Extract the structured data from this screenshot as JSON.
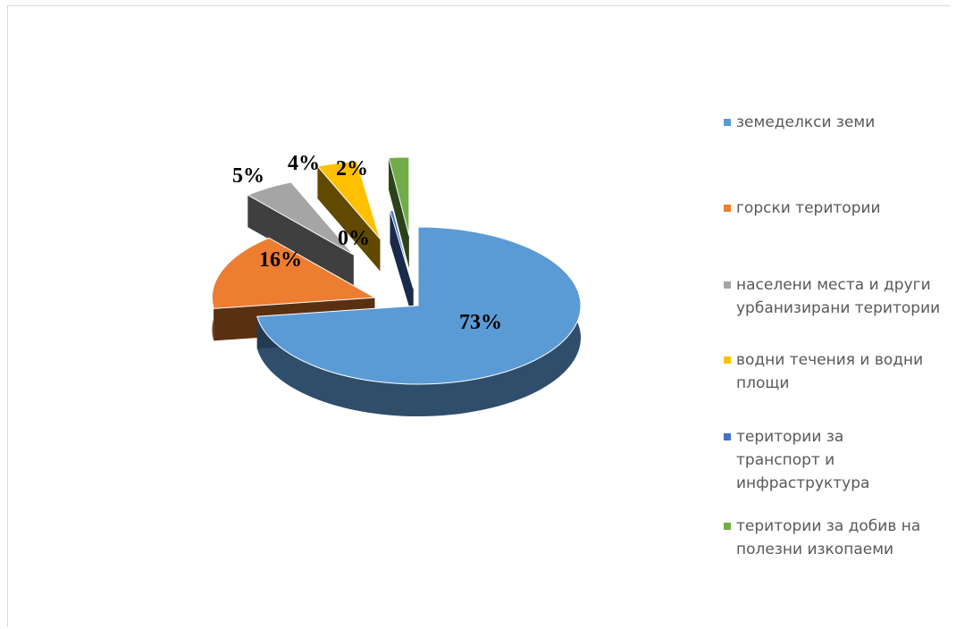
{
  "chart_data": {
    "type": "pie",
    "style": "3d-exploded",
    "categories": [
      "земеделкси земи",
      "горски територии",
      "населени места и други урбанизирани територии",
      "водни течения и водни площи",
      "територии за транспорт и инфраструктура",
      "територии за добив на полезни изкопаеми"
    ],
    "values": [
      73,
      16,
      5,
      4,
      0.3,
      2
    ],
    "data_labels": [
      "73%",
      "16%",
      "5%",
      "4%",
      "0%",
      "2%"
    ],
    "colors": [
      "#5b9bd5",
      "#ed7d31",
      "#a5a5a5",
      "#ffc000",
      "#4472c4",
      "#70ad47"
    ],
    "legend_position": "right"
  }
}
